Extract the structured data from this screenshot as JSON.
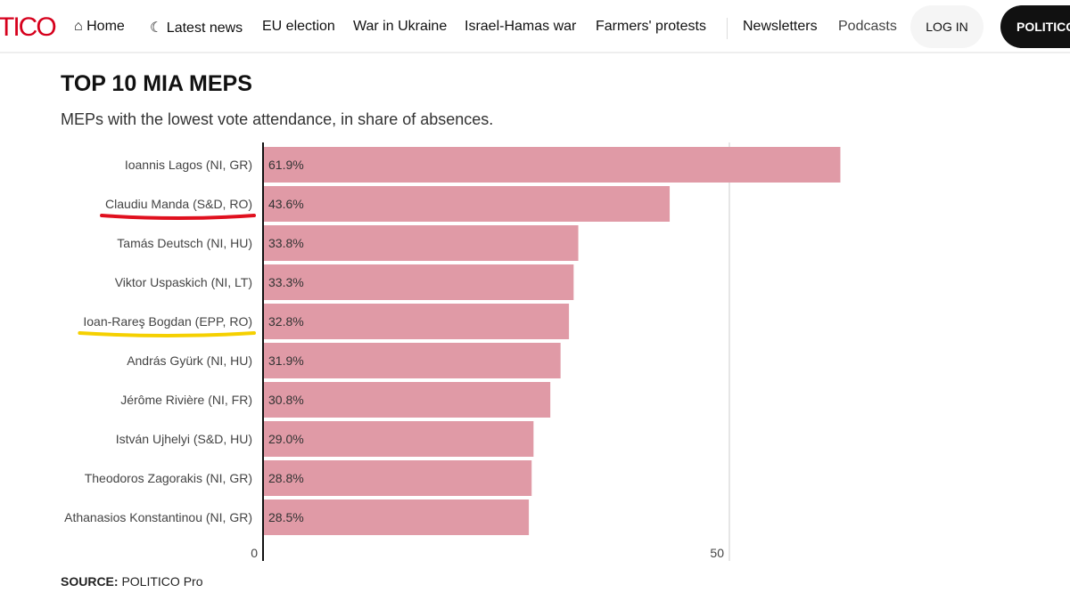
{
  "nav": {
    "logo": "POLITICO",
    "items": [
      {
        "label": "Home",
        "icon": "home-icon"
      },
      {
        "label": "Latest news",
        "icon": "clock-icon"
      },
      {
        "label": "EU election"
      },
      {
        "label": "War in Ukraine"
      },
      {
        "label": "Israel-Hamas war"
      },
      {
        "label": "Farmers' protests"
      },
      {
        "label": "Newsletters"
      },
      {
        "label": "Podcasts"
      }
    ],
    "login": "LOG IN",
    "pro": "POLITICO PRO"
  },
  "chart_data": {
    "type": "bar",
    "orientation": "horizontal",
    "title": "TOP 10 MIA MEPS",
    "subtitle": "MEPs with the lowest vote attendance, in share of absences.",
    "categories": [
      "Ioannis Lagos (NI, GR)",
      "Claudiu Manda (S&D, RO)",
      "Tamás Deutsch (NI, HU)",
      "Viktor Uspaskich (NI, LT)",
      "Ioan-Rareş Bogdan (EPP, RO)",
      "András Gyürk (NI, HU)",
      "Jérôme Rivière (NI, FR)",
      "István Ujhelyi (S&D, HU)",
      "Theodoros Zagorakis (NI, GR)",
      "Athanasios Konstantinou (NI, GR)"
    ],
    "values": [
      61.9,
      43.6,
      33.8,
      33.3,
      32.8,
      31.9,
      30.8,
      29.0,
      28.8,
      28.5
    ],
    "data_labels": [
      "61.9%",
      "43.6%",
      "33.8%",
      "33.3%",
      "32.8%",
      "31.9%",
      "30.8%",
      "29.0%",
      "28.8%",
      "28.5%"
    ],
    "xticks": [
      "0",
      "50"
    ],
    "xlim": [
      0,
      65
    ],
    "bar_color": "#e09aa6",
    "annotations": [
      {
        "category": "Claudiu Manda (S&D, RO)",
        "type": "underline",
        "color": "#e0101e"
      },
      {
        "category": "Ioan-Rareş Bogdan (EPP, RO)",
        "type": "underline",
        "color": "#f5d000"
      }
    ],
    "source_label": "SOURCE:",
    "source": "POLITICO Pro"
  }
}
